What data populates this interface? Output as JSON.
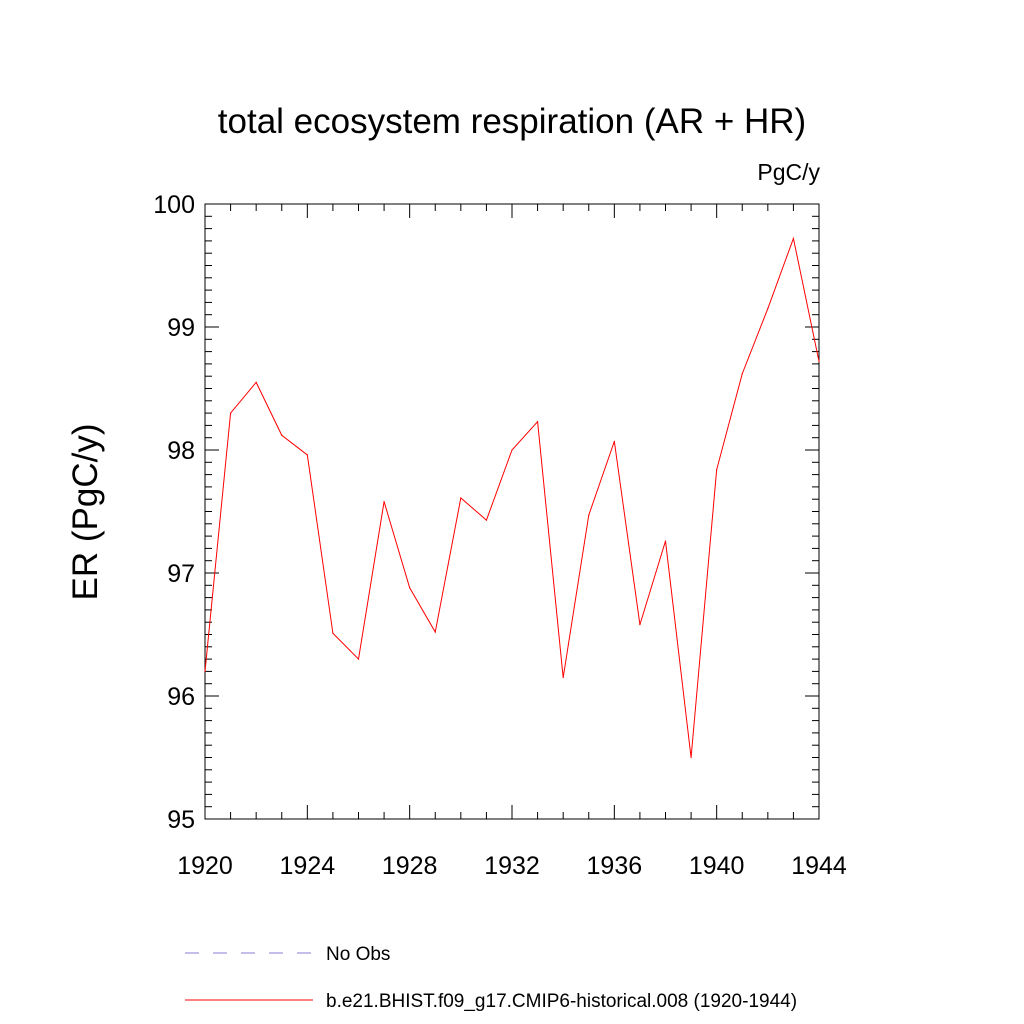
{
  "chart_data": {
    "type": "line",
    "title": "total ecosystem respiration (AR + HR)",
    "units_label": "PgC/y",
    "ylabel": "ER  (PgC/y)",
    "xlabel": "",
    "xlim": [
      1920,
      1944
    ],
    "ylim": [
      95,
      100
    ],
    "x_ticks": [
      1920,
      1924,
      1928,
      1932,
      1936,
      1940,
      1944
    ],
    "y_ticks": [
      95,
      96,
      97,
      98,
      99,
      100
    ],
    "grid": false,
    "legend_position": "bottom",
    "series": [
      {
        "name": "b.e21.BHIST.f09_g17.CMIP6-historical.008 (1920-1944)",
        "color": "#ff0000",
        "style": "solid",
        "x": [
          1920,
          1921,
          1922,
          1923,
          1924,
          1925,
          1926,
          1927,
          1928,
          1929,
          1930,
          1931,
          1932,
          1933,
          1934,
          1935,
          1936,
          1937,
          1938,
          1939,
          1940,
          1941,
          1942,
          1943,
          1944
        ],
        "values": [
          96.2,
          98.3,
          98.55,
          98.12,
          97.96,
          96.51,
          96.3,
          97.58,
          96.88,
          96.52,
          97.61,
          97.43,
          98.0,
          98.23,
          96.15,
          97.47,
          98.07,
          96.58,
          97.26,
          95.5,
          97.84,
          98.62,
          99.15,
          99.72,
          98.72
        ]
      }
    ],
    "legend": [
      {
        "label": "No Obs",
        "color": "#8a7fd4",
        "style": "dashed"
      },
      {
        "label": "b.e21.BHIST.f09_g17.CMIP6-historical.008 (1920-1944)",
        "color": "#ff0000",
        "style": "solid"
      }
    ]
  }
}
